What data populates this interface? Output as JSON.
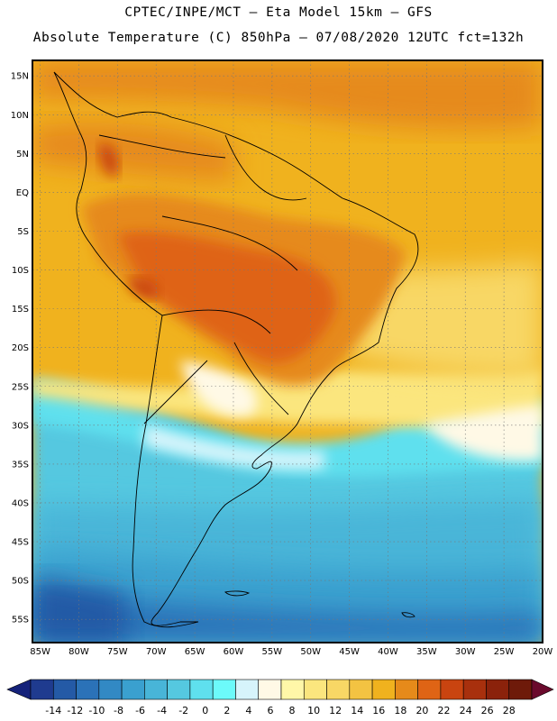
{
  "header": {
    "line1": "CPTEC/INPE/MCT  –   Eta Model 15km  –  GFS",
    "line2": "Absolute Temperature (C) 850hPa – 07/08/2020 12UTC fct=132h"
  },
  "map": {
    "lat_labels": [
      "15N",
      "10N",
      "5N",
      "EQ",
      "5S",
      "10S",
      "15S",
      "20S",
      "25S",
      "30S",
      "35S",
      "40S",
      "45S",
      "50S",
      "55S"
    ],
    "lon_labels": [
      "85W",
      "80W",
      "75W",
      "70W",
      "65W",
      "60W",
      "55W",
      "50W",
      "45W",
      "40W",
      "35W",
      "30W",
      "25W",
      "20W"
    ],
    "lat_range": [
      17,
      -58
    ],
    "lon_range": [
      -86,
      -20
    ]
  },
  "colorbar": {
    "labels": [
      "-14",
      "-12",
      "-10",
      "-8",
      "-6",
      "-4",
      "-2",
      "0",
      "2",
      "4",
      "6",
      "8",
      "10",
      "12",
      "14",
      "16",
      "18",
      "20",
      "22",
      "24",
      "26",
      "28"
    ],
    "colors": [
      "#1f3b8f",
      "#245aa6",
      "#2b72b8",
      "#3289c4",
      "#3aa0cf",
      "#48b5d8",
      "#55c8e0",
      "#5fe0ee",
      "#6cfafa",
      "#d6f4fb",
      "#fff9e6",
      "#fff7a8",
      "#fbe67e",
      "#f8d765",
      "#f3c342",
      "#f0b21e",
      "#e68a1a",
      "#df6415",
      "#c94410",
      "#a8300d",
      "#8b220b",
      "#6e1a0a"
    ],
    "end_colors": [
      "#15227a",
      "#6a0a2c"
    ]
  }
}
